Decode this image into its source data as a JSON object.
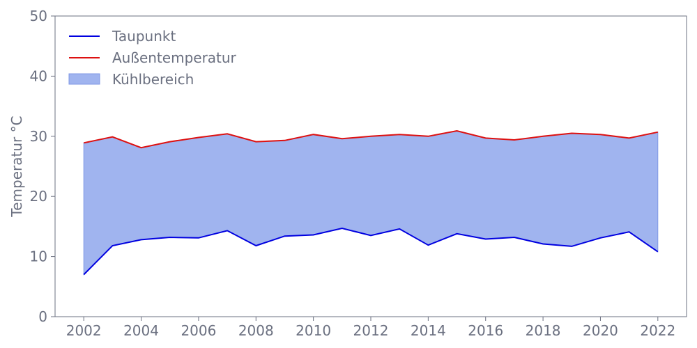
{
  "chart_data": {
    "type": "area",
    "x": [
      2002,
      2003,
      2004,
      2005,
      2006,
      2007,
      2008,
      2009,
      2010,
      2011,
      2012,
      2013,
      2014,
      2015,
      2016,
      2017,
      2018,
      2019,
      2020,
      2021,
      2022
    ],
    "series": [
      {
        "name": "Taupunkt",
        "color": "#0000e0",
        "values": [
          7.0,
          11.8,
          12.8,
          13.2,
          13.1,
          14.3,
          11.8,
          13.4,
          13.6,
          14.7,
          13.5,
          14.6,
          11.9,
          13.8,
          12.9,
          13.2,
          12.1,
          11.7,
          13.1,
          14.1,
          10.8
        ]
      },
      {
        "name": "Außentemperatur",
        "color": "#dd1111",
        "values": [
          28.9,
          29.9,
          28.1,
          29.1,
          29.8,
          30.4,
          29.1,
          29.3,
          30.3,
          29.6,
          30.0,
          30.3,
          30.0,
          30.9,
          29.7,
          29.4,
          30.0,
          30.5,
          30.3,
          29.7,
          30.7
        ]
      }
    ],
    "fill": {
      "name": "Kühlbereich",
      "color": "#a0b4ef",
      "between": [
        "Taupunkt",
        "Außentemperatur"
      ]
    },
    "xlabel": "",
    "ylabel": "Temperatur °C",
    "xlim": [
      2001,
      2023
    ],
    "ylim": [
      0,
      50
    ],
    "xticks": [
      "2002",
      "2004",
      "2006",
      "2008",
      "2010",
      "2012",
      "2014",
      "2016",
      "2018",
      "2020",
      "2022"
    ],
    "yticks": [
      "0",
      "10",
      "20",
      "30",
      "40",
      "50"
    ],
    "grid": false,
    "legend_position": "top-left"
  }
}
